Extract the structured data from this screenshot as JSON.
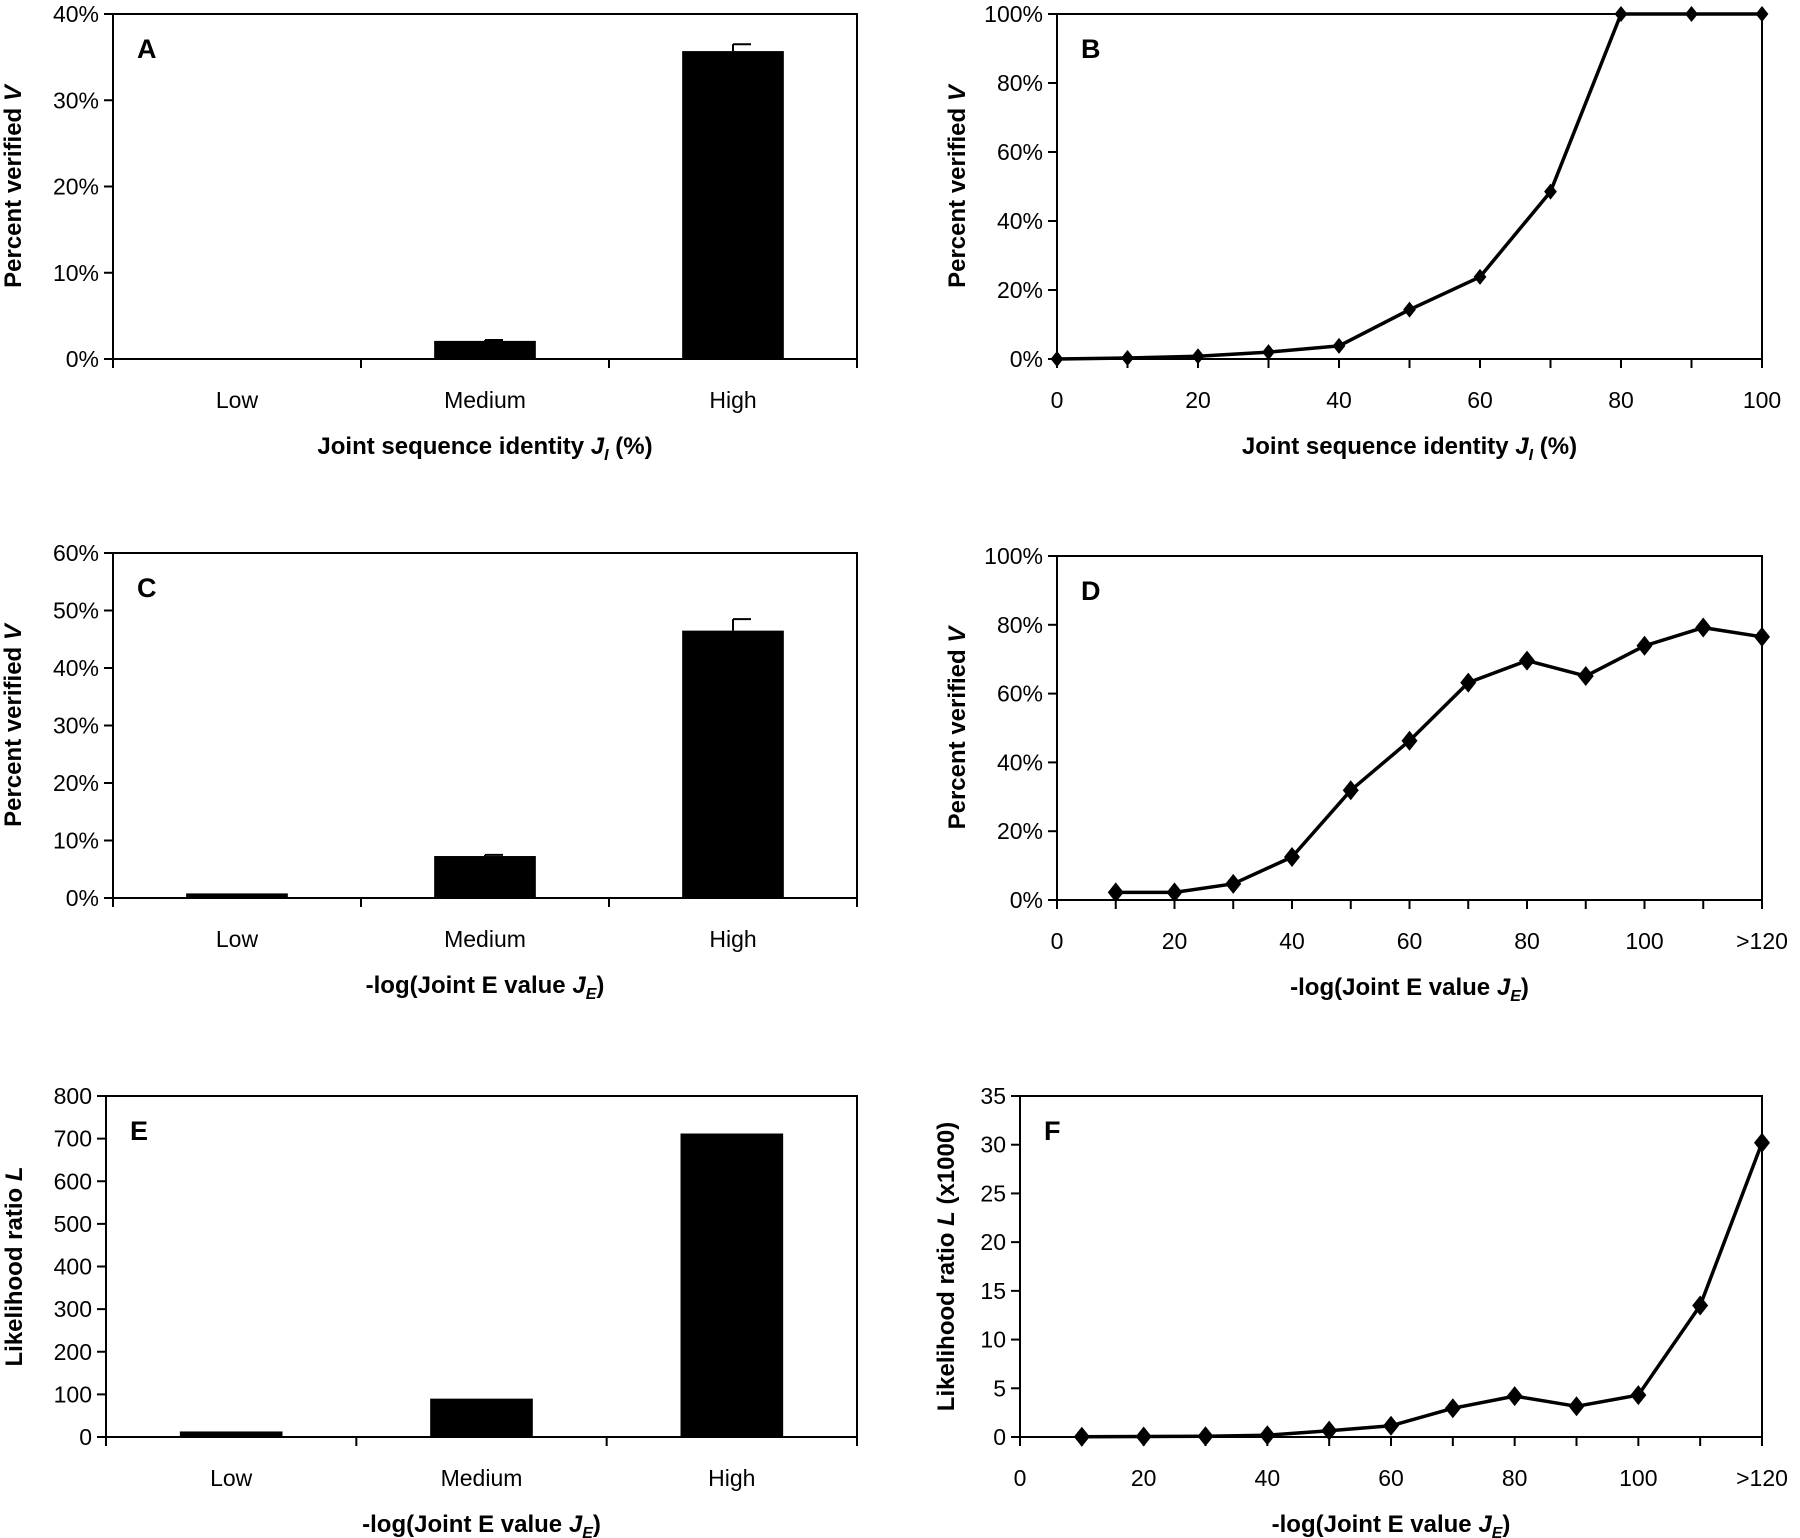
{
  "chart_data": [
    {
      "type": "bar",
      "panel_label": "A",
      "categories": [
        "Low",
        "Medium",
        "High"
      ],
      "values": [
        0.1,
        2.1,
        35.7
      ],
      "error_bars": [
        0,
        0.1,
        0.8
      ],
      "ylim": [
        0,
        40
      ],
      "yticks": [
        "0%",
        "10%",
        "20%",
        "30%",
        "40%"
      ],
      "ylabel": {
        "text": "Percent verified ",
        "var": "V"
      },
      "xlabel": {
        "text": "Joint sequence identity ",
        "var": "J",
        "sub": "I",
        "suffix": " (%)"
      }
    },
    {
      "type": "line",
      "panel_label": "B",
      "x": [
        0,
        10,
        20,
        30,
        40,
        50,
        60,
        70,
        80,
        90,
        100
      ],
      "values": [
        0,
        0.3,
        0.8,
        2,
        3.8,
        14.3,
        23.8,
        48.5,
        100,
        100,
        100
      ],
      "xlim": [
        0,
        100
      ],
      "xticks": [
        "0",
        "20",
        "40",
        "60",
        "80",
        "100"
      ],
      "ylim": [
        0,
        100
      ],
      "yticks": [
        "0%",
        "20%",
        "40%",
        "60%",
        "80%",
        "100%"
      ],
      "ylabel": {
        "text": "Percent verified ",
        "var": "V"
      },
      "xlabel": {
        "text": "Joint sequence identity ",
        "var": "J",
        "sub": "I",
        "suffix": " (%)"
      }
    },
    {
      "type": "bar",
      "panel_label": "C",
      "categories": [
        "Low",
        "Medium",
        "High"
      ],
      "values": [
        0.8,
        7.3,
        46.5
      ],
      "error_bars": [
        0,
        0.2,
        2.0
      ],
      "ylim": [
        0,
        60
      ],
      "yticks": [
        "0%",
        "10%",
        "20%",
        "30%",
        "40%",
        "50%",
        "60%"
      ],
      "ylabel": {
        "text": "Percent verified ",
        "var": "V"
      },
      "xlabel": {
        "text": "-log(Joint E value ",
        "var": "J",
        "sub": "E",
        "suffix": ")"
      }
    },
    {
      "type": "line",
      "panel_label": "D",
      "x": [
        10,
        20,
        30,
        40,
        50,
        60,
        70,
        80,
        90,
        100,
        110,
        120
      ],
      "values": [
        2.2,
        2.2,
        4.7,
        12.5,
        31.9,
        46.3,
        63.2,
        69.6,
        65.1,
        73.9,
        79.2,
        76.5
      ],
      "xlim": [
        0,
        120
      ],
      "xticks": [
        "0",
        "20",
        "40",
        "60",
        "80",
        "100",
        ">120"
      ],
      "ylim": [
        0,
        100
      ],
      "yticks": [
        "0%",
        "20%",
        "40%",
        "60%",
        "80%",
        "100%"
      ],
      "ylabel": {
        "text": "Percent verified ",
        "var": "V"
      },
      "xlabel": {
        "text": "-log(Joint E value ",
        "var": "J",
        "sub": "E",
        "suffix": ")"
      }
    },
    {
      "type": "bar",
      "panel_label": "E",
      "categories": [
        "Low",
        "Medium",
        "High"
      ],
      "values": [
        13,
        90,
        712
      ],
      "error_bars": [
        0,
        0,
        0
      ],
      "ylim": [
        0,
        800
      ],
      "yticks": [
        "0",
        "100",
        "200",
        "300",
        "400",
        "500",
        "600",
        "700",
        "800"
      ],
      "ylabel": {
        "text": "Likelihood ratio ",
        "var": "L",
        "suffix": ""
      },
      "xlabel": {
        "text": "-log(Joint E value ",
        "var": "J",
        "sub": "E",
        "suffix": ")"
      }
    },
    {
      "type": "line",
      "panel_label": "F",
      "x": [
        10,
        20,
        30,
        40,
        50,
        60,
        70,
        80,
        90,
        100,
        110,
        120
      ],
      "values": [
        0.02,
        0.05,
        0.08,
        0.18,
        0.65,
        1.15,
        2.95,
        4.2,
        3.15,
        4.3,
        13.5,
        30.2
      ],
      "xlim": [
        0,
        120
      ],
      "xticks": [
        "0",
        "20",
        "40",
        "60",
        "80",
        "100",
        ">120"
      ],
      "ylim": [
        0,
        35
      ],
      "yticks": [
        "0",
        "5",
        "10",
        "15",
        "20",
        "25",
        "30",
        "35"
      ],
      "ylabel": {
        "text": "Likelihood ratio ",
        "var": "L",
        "suffix": " (x1000)"
      },
      "xlabel": {
        "text": "-log(Joint E value ",
        "var": "J",
        "sub": "E",
        "suffix": ")"
      }
    }
  ]
}
